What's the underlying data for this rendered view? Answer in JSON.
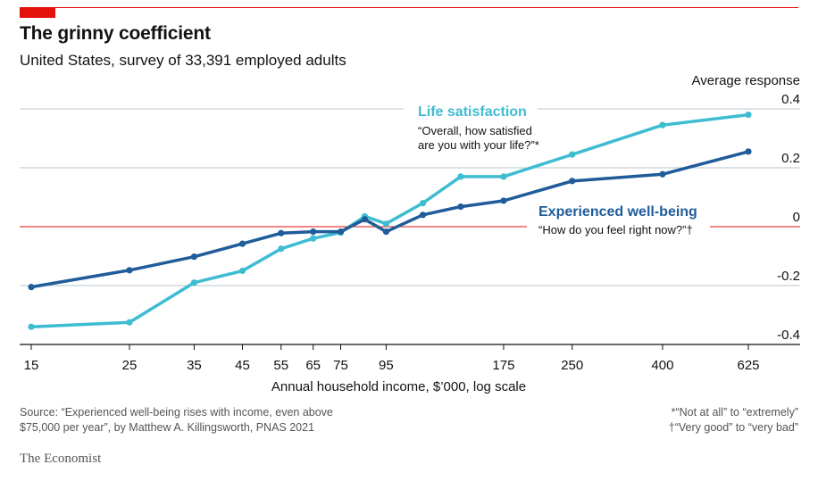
{
  "header": {
    "title": "The grinny coefficient",
    "subtitle": "United States, survey of 33,391 employed adults"
  },
  "chart_data": {
    "type": "line",
    "x_scale": "log",
    "xlabel": "Annual household income, $’000, log scale",
    "ylabel": "Average response",
    "ylim": [
      -0.4,
      0.4
    ],
    "y_ticks": [
      0.4,
      0.2,
      0,
      -0.2,
      -0.4
    ],
    "y_tick_labels": [
      "0.4",
      "0.2",
      "0",
      "-0.2",
      "-0.4"
    ],
    "x_ticks": [
      15,
      25,
      35,
      45,
      55,
      65,
      75,
      95,
      175,
      250,
      400,
      625
    ],
    "x_tick_labels": [
      "15",
      "25",
      "35",
      "45",
      "55",
      "65",
      "75",
      "95",
      "175",
      "250",
      "400",
      "625"
    ],
    "x": [
      15,
      25,
      35,
      45,
      55,
      65,
      75,
      85,
      95,
      115,
      140,
      175,
      250,
      400,
      625
    ],
    "series": [
      {
        "name": "Life satisfaction",
        "note": "“Overall, how satisfied are you with your life?”*",
        "note_lines": [
          "“Overall, how satisfied",
          "are you with your life?”*"
        ],
        "color": "#3ebcd2",
        "values": [
          -0.34,
          -0.325,
          -0.19,
          -0.15,
          -0.075,
          -0.04,
          -0.02,
          0.035,
          0.01,
          0.08,
          0.17,
          0.17,
          0.245,
          0.345,
          0.38
        ]
      },
      {
        "name": "Experienced well-being",
        "note": "“How do you feel right now?”†",
        "note_lines": [
          "“How do you feel right now?”†"
        ],
        "color": "#1f5c99",
        "values": [
          -0.205,
          -0.148,
          -0.102,
          -0.058,
          -0.022,
          -0.017,
          -0.017,
          0.025,
          -0.017,
          0.04,
          0.068,
          0.088,
          0.155,
          0.178,
          0.255
        ]
      }
    ],
    "zero_line_color": "#e3120b"
  },
  "footer": {
    "source_line1": "Source: “Experienced well-being rises with income, even above",
    "source_line2": "$75,000 per year”, by Matthew A. Killingsworth, PNAS 2021",
    "note1": "*“Not at all” to “extremely”",
    "note2": "†“Very good” to “very bad”",
    "brand": "The Economist"
  }
}
